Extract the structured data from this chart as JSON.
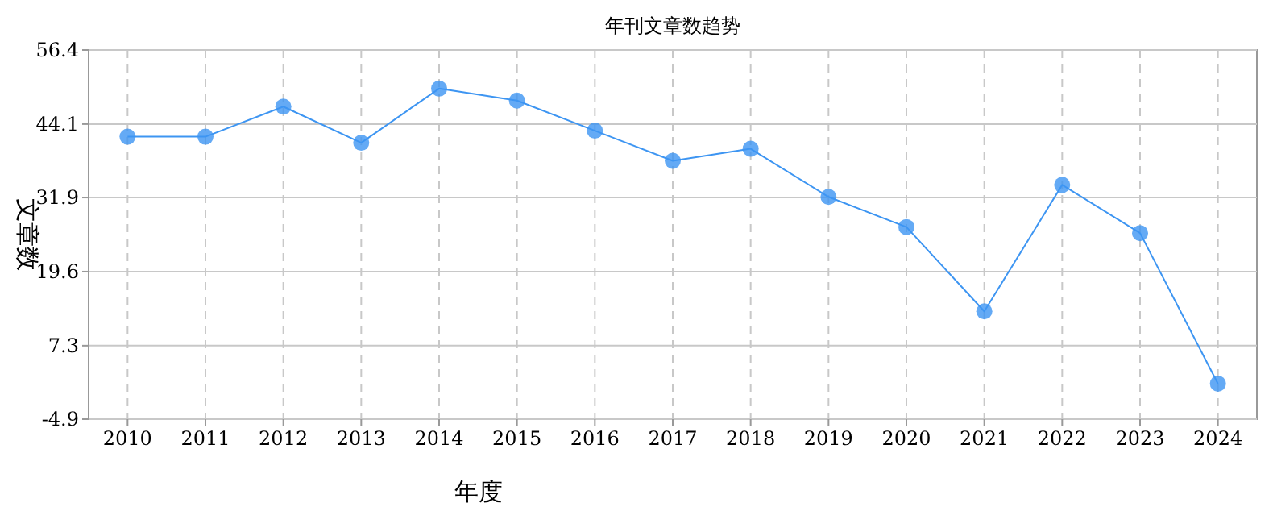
{
  "chart_data": {
    "type": "line",
    "title": "年刊文章数趋势",
    "xlabel": "年度",
    "ylabel": "文章数",
    "categories": [
      "2010",
      "2011",
      "2012",
      "2013",
      "2014",
      "2015",
      "2016",
      "2017",
      "2018",
      "2019",
      "2020",
      "2021",
      "2022",
      "2023",
      "2024"
    ],
    "series": [
      {
        "color": "#3d95f2",
        "values": [
          42,
          42,
          47,
          41,
          50,
          48,
          43,
          38,
          40,
          32,
          27,
          13,
          34,
          26,
          1
        ]
      }
    ],
    "ylim": [
      -4.9,
      56.4
    ],
    "yticks": [
      -4.9,
      7.3,
      19.6,
      31.9,
      44.1,
      56.4
    ],
    "grid": true,
    "marker": "circle",
    "line_style": "solid"
  }
}
